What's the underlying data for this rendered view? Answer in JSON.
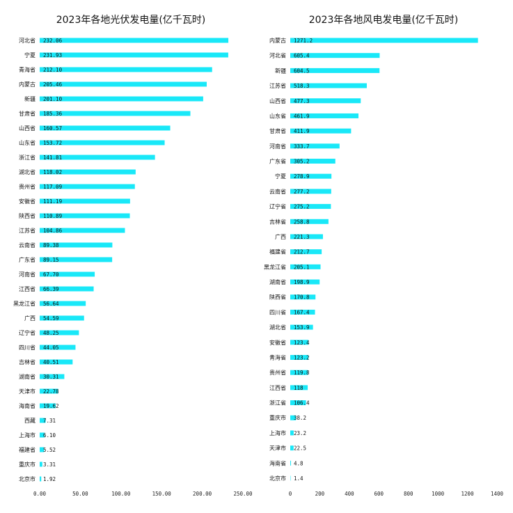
{
  "colors": {
    "bar": "#19e8f8",
    "text": "#111111"
  },
  "chart_data": [
    {
      "type": "bar",
      "orientation": "horizontal",
      "title": "2023年各地光伏发电量(亿千瓦时)",
      "xlim": [
        0,
        250
      ],
      "xticks": [
        "0.00",
        "50.00",
        "100.00",
        "150.00",
        "200.00",
        "250.00"
      ],
      "tick_values": [
        0,
        50,
        100,
        150,
        200,
        250
      ],
      "grid": false,
      "categories": [
        "河北省",
        "宁夏",
        "青海省",
        "内蒙古",
        "新疆",
        "甘肃省",
        "山西省",
        "山东省",
        "浙江省",
        "湖北省",
        "贵州省",
        "安徽省",
        "陕西省",
        "江苏省",
        "云南省",
        "广东省",
        "河南省",
        "江西省",
        "黑龙江省",
        "广西",
        "辽宁省",
        "四川省",
        "吉林省",
        "湖南省",
        "天津市",
        "海南省",
        "西藏",
        "上海市",
        "福建省",
        "重庆市",
        "北京市"
      ],
      "values": [
        232.06,
        231.93,
        212.1,
        205.46,
        201.1,
        185.36,
        160.57,
        153.72,
        141.81,
        118.02,
        117.09,
        111.19,
        110.89,
        104.86,
        89.38,
        89.15,
        67.7,
        66.39,
        56.64,
        54.59,
        48.25,
        44.05,
        40.51,
        30.31,
        22.78,
        19.62,
        7.31,
        6.1,
        5.52,
        3.31,
        1.92
      ],
      "value_labels": [
        "232.06",
        "231.93",
        "212.10",
        "205.46",
        "201.10",
        "185.36",
        "160.57",
        "153.72",
        "141.81",
        "118.02",
        "117.09",
        "111.19",
        "110.89",
        "104.86",
        "89.38",
        "89.15",
        "67.70",
        "66.39",
        "56.64",
        "54.59",
        "48.25",
        "44.05",
        "40.51",
        "30.31",
        "22.78",
        "19.62",
        "7.31",
        "6.10",
        "5.52",
        "3.31",
        "1.92"
      ]
    },
    {
      "type": "bar",
      "orientation": "horizontal",
      "title": "2023年各地风电发电量(亿千瓦时)",
      "xlim": [
        0,
        1400
      ],
      "xticks": [
        "0",
        "200",
        "400",
        "600",
        "800",
        "1000",
        "1200",
        "1400"
      ],
      "tick_values": [
        0,
        200,
        400,
        600,
        800,
        1000,
        1200,
        1400
      ],
      "grid": false,
      "categories": [
        "内蒙古",
        "河北省",
        "新疆",
        "江苏省",
        "山西省",
        "山东省",
        "甘肃省",
        "河南省",
        "广东省",
        "宁夏",
        "云南省",
        "辽宁省",
        "吉林省",
        "广西",
        "福建省",
        "黑龙江省",
        "湖南省",
        "陕西省",
        "四川省",
        "湖北省",
        "安徽省",
        "青海省",
        "贵州省",
        "江西省",
        "浙江省",
        "重庆市",
        "上海市",
        "天津市",
        "海南省",
        "北京市"
      ],
      "values": [
        1271.2,
        605.4,
        604.5,
        518.3,
        477.3,
        461.9,
        411.9,
        333.7,
        305.2,
        278.9,
        277.2,
        275.2,
        258.8,
        221.3,
        212.7,
        205.1,
        198.9,
        170.8,
        167.4,
        153.9,
        123.4,
        123.2,
        119.8,
        118,
        106.4,
        38.2,
        23.2,
        22.5,
        4.8,
        1.4
      ],
      "value_labels": [
        "1271.2",
        "605.4",
        "604.5",
        "518.3",
        "477.3",
        "461.9",
        "411.9",
        "333.7",
        "305.2",
        "278.9",
        "277.2",
        "275.2",
        "258.8",
        "221.3",
        "212.7",
        "205.1",
        "198.9",
        "170.8",
        "167.4",
        "153.9",
        "123.4",
        "123.2",
        "119.8",
        "118",
        "106.4",
        "38.2",
        "23.2",
        "22.5",
        "4.8",
        "1.4"
      ]
    }
  ]
}
